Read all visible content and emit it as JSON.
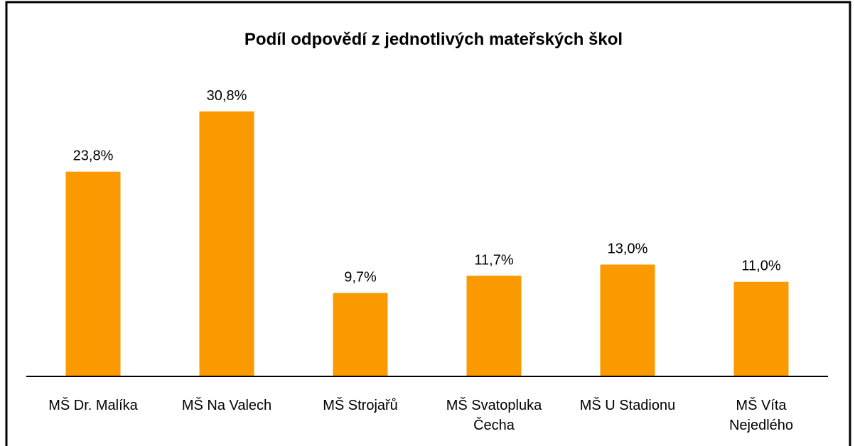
{
  "chart_data": {
    "type": "bar",
    "title": "Podíl odpovědí z jednotlivých mateřských škol",
    "categories": [
      "MŠ Dr. Malíka",
      "MŠ Na Valech",
      "MŠ Strojařů",
      "MŠ Svatopluka Čecha",
      "MŠ U Stadionu",
      "MŠ Víta Nejedlého"
    ],
    "values": [
      23.8,
      30.8,
      9.7,
      11.7,
      13.0,
      11.0
    ],
    "value_labels": [
      "23,8%",
      "30,8%",
      "9,7%",
      "11,7%",
      "13,0%",
      "11,0%"
    ],
    "color": "#fb9a00",
    "ylim": [
      0,
      35
    ]
  }
}
